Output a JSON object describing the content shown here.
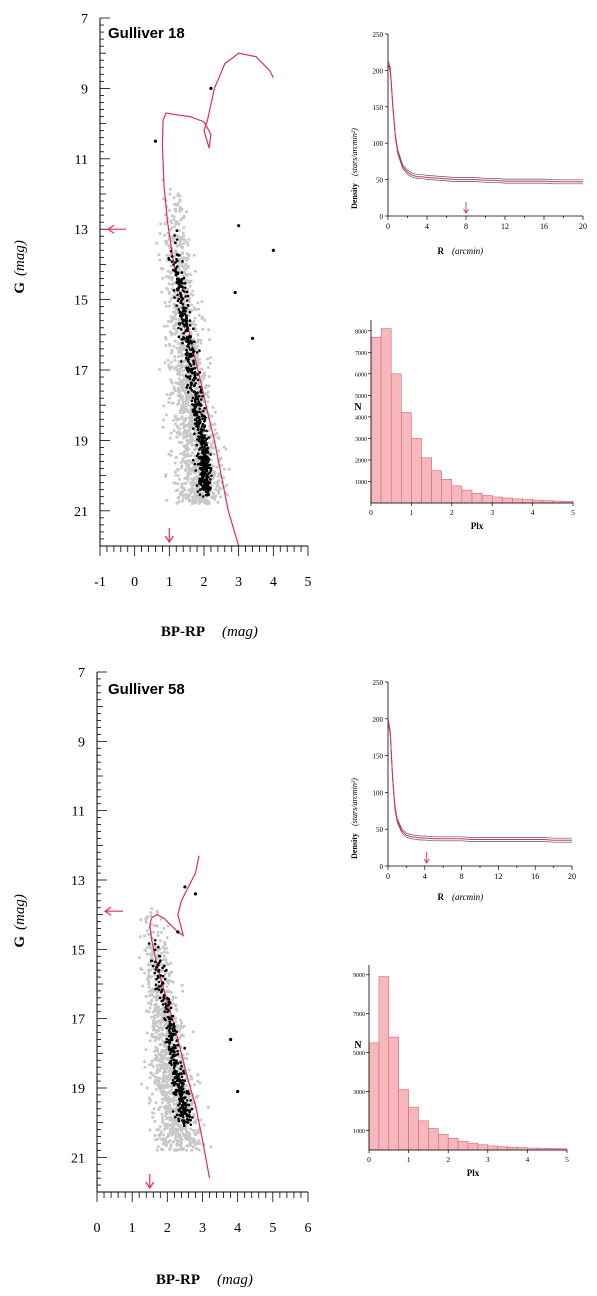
{
  "colors": {
    "isochrone": "#e0304e",
    "member": "#000000",
    "field": "#c8c8c8",
    "hist_fill": "#f7b8bd",
    "hist_edge": "#d96470",
    "axis": "#000000"
  },
  "panels": [
    {
      "cmd": {
        "title": "Gulliver 18",
        "xlabel": "BP-RP",
        "xunit": "(mag)",
        "ylabel": "G",
        "yunit": "(mag)",
        "xticks": [
          "-1",
          "0",
          "1",
          "2",
          "3",
          "4",
          "5"
        ],
        "yticks": [
          "7",
          "9",
          "11",
          "13",
          "15",
          "17",
          "19",
          "21"
        ]
      },
      "density": {
        "ylabel": "Density",
        "yunit": "(stars/arcmin²)",
        "xlabel": "R",
        "xunit": "(arcmin)",
        "xticks": [
          "0",
          "4",
          "8",
          "12",
          "16",
          "20"
        ],
        "yticks": [
          "0",
          "50",
          "100",
          "150",
          "200",
          "250"
        ]
      },
      "hist": {
        "xlabel": "Plx",
        "ylabel": "N",
        "xticks": [
          "0",
          "1",
          "2",
          "3",
          "4",
          "5"
        ],
        "yticks": [
          "1000",
          "2000",
          "3000",
          "4000",
          "5000",
          "6000",
          "7000",
          "8000"
        ]
      }
    },
    {
      "cmd": {
        "title": "Gulliver 58",
        "xlabel": "BP-RP",
        "xunit": "(mag)",
        "ylabel": "G",
        "yunit": "(mag)",
        "xticks": [
          "0",
          "1",
          "2",
          "3",
          "4",
          "5",
          "6"
        ],
        "yticks": [
          "7",
          "9",
          "11",
          "13",
          "15",
          "17",
          "19",
          "21"
        ]
      },
      "density": {
        "ylabel": "Density",
        "yunit": "(stars/arcmin²)",
        "xlabel": "R",
        "xunit": "(arcmin)",
        "xticks": [
          "0",
          "4",
          "8",
          "12",
          "16",
          "20"
        ],
        "yticks": [
          "0",
          "50",
          "100",
          "150",
          "200",
          "250"
        ]
      },
      "hist": {
        "xlabel": "Plx",
        "ylabel": "N",
        "xticks": [
          "0",
          "1",
          "2",
          "3",
          "4",
          "5"
        ],
        "yticks": [
          "1000",
          "3000",
          "5000",
          "7000",
          "9000"
        ]
      }
    }
  ],
  "chart_data": [
    {
      "type": "scatter",
      "title": "Gulliver 18",
      "xlabel": "BP-RP (mag)",
      "ylabel": "G (mag)",
      "xlim": [
        -1,
        5
      ],
      "ylim": [
        22,
        7
      ],
      "y_inverted": true,
      "arrows": {
        "G": 13,
        "BP-RP": 1.0
      },
      "isochrone": {
        "bp_rp": [
          3.0,
          2.7,
          2.5,
          2.3,
          2.1,
          1.9,
          1.7,
          1.5,
          1.3,
          1.1,
          0.95,
          0.85,
          0.8,
          0.82,
          0.9,
          1.2,
          1.6,
          2.0,
          2.2,
          2.15,
          2.0,
          2.1,
          2.3,
          2.6,
          3.0,
          3.5,
          3.9,
          4.0
        ],
        "G": [
          22.0,
          21.0,
          20.0,
          19.0,
          18.2,
          17.3,
          16.5,
          15.6,
          14.8,
          13.8,
          12.8,
          11.8,
          10.6,
          9.9,
          9.7,
          9.75,
          9.8,
          9.95,
          10.3,
          10.7,
          10.2,
          9.9,
          9.0,
          8.3,
          8.0,
          8.1,
          8.5,
          8.7
        ]
      },
      "members_region": {
        "bp_rp_center": [
          1.0,
          1.3,
          1.6,
          1.9,
          2.0
        ],
        "G": [
          13,
          15,
          17,
          19,
          20.5
        ],
        "n": 600
      },
      "bright_members": [
        {
          "bp_rp": 2.2,
          "G": 9.0
        },
        {
          "bp_rp": 0.6,
          "G": 10.5
        },
        {
          "bp_rp": 3.0,
          "G": 12.9
        },
        {
          "bp_rp": 4.0,
          "G": 13.6
        },
        {
          "bp_rp": 2.9,
          "G": 14.8
        },
        {
          "bp_rp": 3.4,
          "G": 16.1
        }
      ]
    },
    {
      "type": "line",
      "title": "",
      "xlabel": "R (arcmin)",
      "ylabel": "Density (stars/arcmin²)",
      "xlim": [
        0,
        20
      ],
      "ylim": [
        0,
        250
      ],
      "x": [
        0,
        0.25,
        0.5,
        0.75,
        1,
        1.5,
        2,
        2.5,
        3,
        3.5,
        4,
        5,
        6,
        7,
        8,
        9,
        10,
        11,
        12,
        13,
        14,
        15,
        16,
        17,
        18,
        19,
        20
      ],
      "y": [
        212,
        200,
        150,
        110,
        88,
        68,
        60,
        56,
        54,
        54,
        53,
        52,
        51,
        50,
        50,
        50,
        49,
        49,
        48,
        48,
        48,
        48,
        48,
        47,
        47,
        47,
        47
      ],
      "limit_radius": 8.0
    },
    {
      "type": "bar",
      "title": "",
      "xlabel": "Plx",
      "ylabel": "N",
      "bin_start": 0,
      "bin_width": 0.25,
      "values": [
        7700,
        8100,
        6000,
        4200,
        3000,
        2100,
        1500,
        1100,
        800,
        600,
        450,
        350,
        280,
        230,
        190,
        160,
        130,
        110,
        90,
        80
      ],
      "ylim": [
        0,
        8500
      ]
    },
    {
      "type": "scatter",
      "title": "Gulliver 58",
      "xlabel": "BP-RP (mag)",
      "ylabel": "G (mag)",
      "xlim": [
        0,
        6
      ],
      "ylim": [
        22,
        7
      ],
      "y_inverted": true,
      "arrows": {
        "G": 13.9,
        "BP-RP": 1.5
      },
      "isochrone": {
        "bp_rp": [
          3.2,
          3.0,
          2.8,
          2.6,
          2.4,
          2.2,
          2.0,
          1.8,
          1.65,
          1.55,
          1.5,
          1.55,
          1.7,
          1.9,
          2.1,
          2.3,
          2.45,
          2.3,
          2.4,
          2.6,
          2.8,
          2.9
        ],
        "G": [
          21.6,
          20.5,
          19.5,
          18.8,
          18.0,
          17.2,
          16.5,
          15.8,
          15.2,
          14.7,
          14.3,
          14.1,
          14.0,
          14.1,
          14.3,
          14.5,
          14.6,
          14.0,
          13.6,
          13.2,
          12.8,
          12.3
        ]
      },
      "members_region": {
        "bp_rp_center": [
          1.5,
          1.8,
          2.1,
          2.3,
          2.5
        ],
        "G": [
          14.5,
          16,
          17.5,
          19,
          20
        ],
        "n": 350
      },
      "bright_members": [
        {
          "bp_rp": 2.5,
          "G": 13.2
        },
        {
          "bp_rp": 2.8,
          "G": 13.4
        },
        {
          "bp_rp": 2.3,
          "G": 14.5
        },
        {
          "bp_rp": 3.8,
          "G": 17.6
        },
        {
          "bp_rp": 4.0,
          "G": 19.1
        }
      ]
    },
    {
      "type": "line",
      "title": "",
      "xlabel": "R (arcmin)",
      "ylabel": "Density (stars/arcmin²)",
      "xlim": [
        0,
        20
      ],
      "ylim": [
        0,
        250
      ],
      "x": [
        0,
        0.25,
        0.5,
        0.75,
        1,
        1.5,
        2,
        2.5,
        3,
        3.5,
        4,
        5,
        6,
        7,
        8,
        9,
        10,
        11,
        12,
        13,
        14,
        15,
        16,
        17,
        18,
        19,
        20
      ],
      "y": [
        200,
        180,
        120,
        80,
        62,
        48,
        42,
        40,
        39,
        38,
        38,
        37,
        37,
        37,
        37,
        36,
        36,
        36,
        36,
        36,
        36,
        36,
        36,
        36,
        35,
        35,
        35
      ],
      "limit_radius": 4.2
    },
    {
      "type": "bar",
      "title": "",
      "xlabel": "Plx",
      "ylabel": "N",
      "bin_start": 0,
      "bin_width": 0.25,
      "values": [
        5500,
        8900,
        5800,
        3100,
        2200,
        1500,
        1100,
        800,
        600,
        450,
        350,
        270,
        210,
        170,
        140,
        120,
        100,
        90,
        80,
        70
      ],
      "ylim": [
        0,
        9500
      ]
    }
  ]
}
